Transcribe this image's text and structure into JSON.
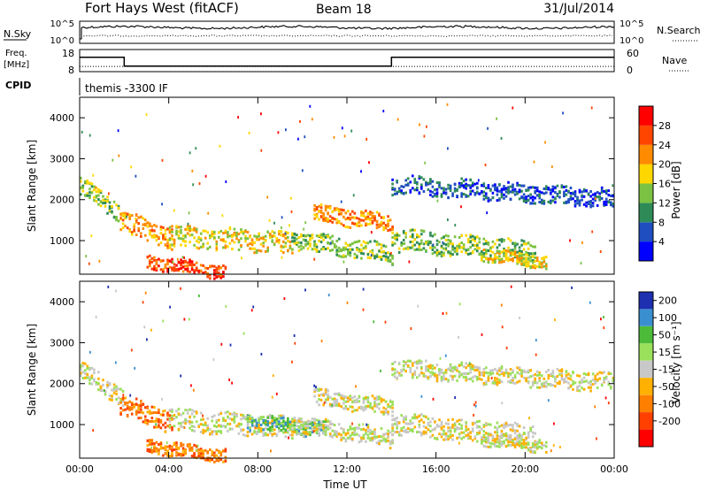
{
  "header": {
    "station": "Fort Hays West (fitACF)",
    "beam": "Beam 18",
    "date": "31/Jul/2014"
  },
  "labels": {
    "nsky": "N.Sky",
    "nsearch": "N.Search",
    "freq_line1": "Freq.",
    "freq_line2": "[MHz]",
    "nave": "Nave",
    "cpid": "CPID",
    "cpid_value": "themis -3300 IF",
    "ylabel": "Slant Range [km]",
    "xlabel": "Time UT",
    "power_label": "Power [dB]",
    "velocity_label": "Velocity [m s⁻¹]"
  },
  "noise_panel": {
    "left_ticks": [
      "10^5",
      "10^0"
    ],
    "right_ticks": [
      "10^5",
      "10^0"
    ]
  },
  "freq_panel": {
    "left_ticks": [
      "18",
      "8"
    ],
    "right_ticks": [
      "60",
      "0"
    ],
    "frequency_steps_mhz": [
      {
        "t": 0.0,
        "v": 14.5
      },
      {
        "t": 2.0,
        "v": 10.5
      },
      {
        "t": 14.0,
        "v": 14.5
      },
      {
        "t": 24.0,
        "v": 14.5
      }
    ],
    "nave_level": 14
  },
  "chart_data": [
    {
      "type": "heatmap",
      "name": "Power",
      "x_ticks": [
        "00:00",
        "04:00",
        "08:00",
        "12:00",
        "16:00",
        "20:00",
        "00:00"
      ],
      "xlim": [
        0,
        24
      ],
      "ylim": [
        180,
        4500
      ],
      "y_ticks": [
        1000,
        2000,
        3000,
        4000
      ],
      "colorbar": {
        "label": "Power [dB]",
        "ticks": [
          "4",
          "8",
          "12",
          "16",
          "20",
          "24",
          "28"
        ],
        "colors": [
          "#0000ff",
          "#1e4ebf",
          "#2e8b57",
          "#7cc242",
          "#ffd700",
          "#ff8c00",
          "#ff4500",
          "#ff0000"
        ]
      },
      "bands": [
        {
          "t0": 0.0,
          "t1": 2.0,
          "r0": 2350,
          "r1": 1650,
          "thick": 220,
          "level": 3
        },
        {
          "t0": 1.8,
          "t1": 4.2,
          "r0": 1500,
          "r1": 1050,
          "thick": 260,
          "level": 5
        },
        {
          "t0": 3.0,
          "t1": 6.5,
          "r0": 520,
          "r1": 250,
          "thick": 160,
          "level": 6
        },
        {
          "t0": 4.0,
          "t1": 9.5,
          "r0": 1150,
          "r1": 950,
          "thick": 260,
          "level": 4
        },
        {
          "t0": 9.5,
          "t1": 14.0,
          "r0": 1050,
          "r1": 700,
          "thick": 220,
          "level": 3
        },
        {
          "t0": 10.5,
          "t1": 14.0,
          "r0": 1700,
          "r1": 1450,
          "thick": 200,
          "level": 5
        },
        {
          "t0": 14.0,
          "t1": 24.0,
          "r0": 2400,
          "r1": 2050,
          "thick": 220,
          "level": 1
        },
        {
          "t0": 14.0,
          "t1": 20.5,
          "r0": 1050,
          "r1": 750,
          "thick": 260,
          "level": 3
        },
        {
          "t0": 18.0,
          "t1": 21.0,
          "r0": 700,
          "r1": 500,
          "thick": 160,
          "level": 4
        }
      ]
    },
    {
      "type": "heatmap",
      "name": "Velocity",
      "x_ticks": [
        "00:00",
        "04:00",
        "08:00",
        "12:00",
        "16:00",
        "20:00",
        "00:00"
      ],
      "xlim": [
        0,
        24
      ],
      "ylim": [
        180,
        4500
      ],
      "y_ticks": [
        1000,
        2000,
        3000,
        4000
      ],
      "colorbar": {
        "label": "Velocity [m s⁻¹]",
        "ticks": [
          "200",
          "100",
          "50",
          "15",
          "-15",
          "-50",
          "-100",
          "-200"
        ],
        "colors": [
          "#1e2fb0",
          "#3a8fd0",
          "#4dbb3a",
          "#9be05a",
          "#c8c8c8",
          "#ffb000",
          "#ff8000",
          "#ff4000",
          "#ff0000"
        ]
      },
      "bands": [
        {
          "t0": 0.0,
          "t1": 2.0,
          "r0": 2350,
          "r1": 1650,
          "thick": 220,
          "level": 4
        },
        {
          "t0": 1.8,
          "t1": 4.2,
          "r0": 1500,
          "r1": 1050,
          "thick": 260,
          "level": 6
        },
        {
          "t0": 3.0,
          "t1": 6.5,
          "r0": 520,
          "r1": 250,
          "thick": 160,
          "level": 6
        },
        {
          "t0": 4.0,
          "t1": 9.5,
          "r0": 1150,
          "r1": 950,
          "thick": 260,
          "level": 4
        },
        {
          "t0": 7.5,
          "t1": 11.0,
          "r0": 1100,
          "r1": 900,
          "thick": 180,
          "level": 2
        },
        {
          "t0": 9.5,
          "t1": 14.0,
          "r0": 1050,
          "r1": 700,
          "thick": 220,
          "level": 4
        },
        {
          "t0": 10.5,
          "t1": 14.0,
          "r0": 1700,
          "r1": 1450,
          "thick": 200,
          "level": 4
        },
        {
          "t0": 14.0,
          "t1": 24.0,
          "r0": 2400,
          "r1": 2050,
          "thick": 220,
          "level": 4
        },
        {
          "t0": 14.0,
          "t1": 20.5,
          "r0": 1050,
          "r1": 750,
          "thick": 260,
          "level": 4
        },
        {
          "t0": 18.0,
          "t1": 21.0,
          "r0": 700,
          "r1": 500,
          "thick": 160,
          "level": 4
        }
      ]
    }
  ]
}
